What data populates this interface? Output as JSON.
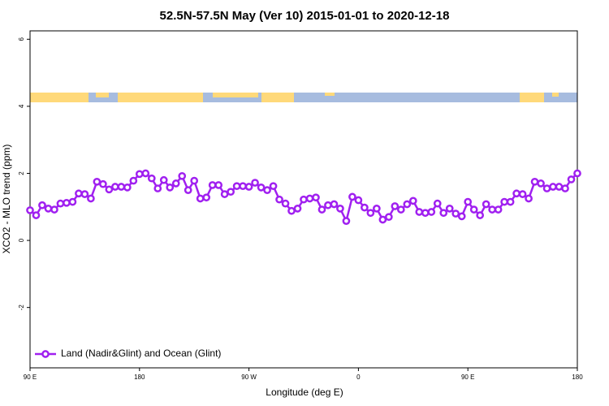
{
  "chart_data": {
    "type": "line",
    "title": "52.5N-57.5N May (Ver 10)   2015-01-01 to 2020-12-18",
    "x_label": "Longitude (deg E)",
    "y_label": "XCO2 - MLO trend (ppm)",
    "xlim": [
      90,
      540
    ],
    "ylim": [
      -3.8,
      6.25
    ],
    "xticks": [
      {
        "value": 90,
        "label": "90 E"
      },
      180,
      {
        "value": 270,
        "label": "90 W"
      },
      {
        "value": 360,
        "label": "0"
      },
      {
        "value": 450,
        "label": "90 E"
      },
      {
        "value": 540,
        "label": "180"
      }
    ],
    "yticks": [
      -2,
      0,
      2,
      4,
      6
    ],
    "legend": "bottom-left",
    "x": [
      90,
      95,
      100,
      105,
      110,
      115,
      120,
      125,
      130,
      135,
      140,
      145,
      150,
      155,
      160,
      165,
      170,
      175,
      180,
      185,
      190,
      195,
      200,
      205,
      210,
      215,
      220,
      225,
      230,
      235,
      240,
      245,
      250,
      255,
      260,
      265,
      270,
      275,
      280,
      285,
      290,
      295,
      300,
      305,
      310,
      315,
      320,
      325,
      330,
      335,
      340,
      345,
      350,
      355,
      360,
      365,
      370,
      375,
      380,
      385,
      390,
      395,
      400,
      405,
      410,
      415,
      420,
      425,
      430,
      435,
      440,
      445,
      450,
      455,
      460,
      465,
      470,
      475,
      480,
      485,
      490,
      495,
      500,
      505,
      510,
      515,
      520,
      525,
      530,
      535,
      540
    ],
    "series": [
      {
        "name": "Land (Nadir&Glint) and Ocean (Glint)",
        "color": "#a020f0",
        "values": [
          0.9,
          0.75,
          1.05,
          0.95,
          0.92,
          1.1,
          1.12,
          1.15,
          1.4,
          1.38,
          1.25,
          1.75,
          1.68,
          1.52,
          1.6,
          1.6,
          1.58,
          1.78,
          1.98,
          2.0,
          1.85,
          1.55,
          1.8,
          1.58,
          1.7,
          1.92,
          1.5,
          1.78,
          1.25,
          1.28,
          1.65,
          1.65,
          1.38,
          1.45,
          1.62,
          1.62,
          1.6,
          1.72,
          1.58,
          1.5,
          1.62,
          1.22,
          1.1,
          0.88,
          0.95,
          1.22,
          1.25,
          1.28,
          0.92,
          1.05,
          1.08,
          0.95,
          0.58,
          1.3,
          1.2,
          0.98,
          0.82,
          0.95,
          0.62,
          0.7,
          1.02,
          0.92,
          1.08,
          1.18,
          0.85,
          0.82,
          0.85,
          1.1,
          0.82,
          0.95,
          0.8,
          0.72,
          1.15,
          0.92,
          0.75,
          1.08,
          0.92,
          0.92,
          1.15,
          1.15,
          1.4,
          1.38,
          1.25,
          1.75,
          1.7,
          1.55,
          1.6,
          1.6,
          1.55,
          1.82,
          2.0
        ]
      }
    ]
  }
}
